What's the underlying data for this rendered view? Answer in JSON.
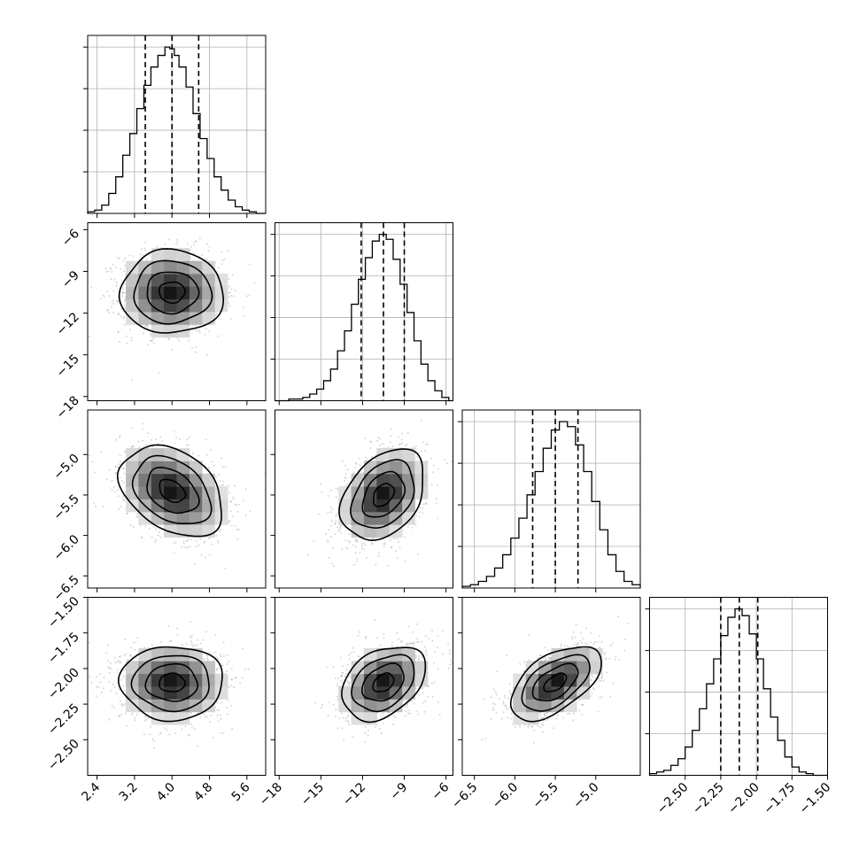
{
  "chart_data": {
    "type": "corner",
    "title": "",
    "parameters": [
      {
        "name": "",
        "lim": [
          2.2,
          6.0
        ],
        "ticks": [
          2.4,
          3.2,
          4.0,
          4.8,
          5.6
        ],
        "tick_labels": [
          "2.4",
          "3.2",
          "4.0",
          "4.8",
          "5.6"
        ],
        "quantiles": [
          3.43,
          4.0,
          4.57
        ],
        "hist_bins": [
          2.2,
          2.35,
          2.5,
          2.65,
          2.8,
          2.95,
          3.1,
          3.25,
          3.4,
          3.55,
          3.7,
          3.85,
          3.95,
          4.05,
          4.15,
          4.3,
          4.45,
          4.6,
          4.75,
          4.9,
          5.05,
          5.2,
          5.35,
          5.5,
          5.65,
          5.8,
          6.0
        ],
        "hist_counts": [
          1,
          2,
          5,
          12,
          22,
          35,
          48,
          63,
          77,
          88,
          95,
          100,
          99,
          95,
          88,
          76,
          60,
          45,
          33,
          22,
          14,
          8,
          4,
          2,
          1,
          0
        ]
      },
      {
        "name": "",
        "lim": [
          -18.3,
          -5.5
        ],
        "ticks": [
          -18,
          -15,
          -12,
          -9,
          -6
        ],
        "tick_labels": [
          "−18",
          "−15",
          "−12",
          "−9",
          "−6"
        ],
        "quantiles": [
          -12.1,
          -10.5,
          -9.0
        ],
        "hist_bins": [
          -18.3,
          -17.8,
          -17.3,
          -16.8,
          -16.3,
          -15.8,
          -15.3,
          -14.8,
          -14.3,
          -13.8,
          -13.3,
          -12.8,
          -12.3,
          -11.8,
          -11.3,
          -10.8,
          -10.3,
          -9.8,
          -9.3,
          -8.8,
          -8.3,
          -7.8,
          -7.3,
          -6.8,
          -6.3,
          -5.8,
          -5.5
        ],
        "hist_counts": [
          0,
          0,
          1,
          1,
          2,
          4,
          7,
          12,
          19,
          30,
          42,
          58,
          73,
          86,
          96,
          100,
          97,
          85,
          70,
          53,
          36,
          22,
          12,
          6,
          2,
          0
        ]
      },
      {
        "name": "",
        "lim": [
          -6.65,
          -4.45
        ],
        "ticks": [
          -6.5,
          -6.0,
          -5.5,
          -5.0
        ],
        "tick_labels": [
          "−6.5",
          "−6.0",
          "−5.5",
          "−5.0"
        ],
        "quantiles": [
          -5.78,
          -5.5,
          -5.22
        ],
        "hist_bins": [
          -6.65,
          -6.55,
          -6.45,
          -6.35,
          -6.25,
          -6.15,
          -6.05,
          -5.95,
          -5.85,
          -5.75,
          -5.65,
          -5.55,
          -5.45,
          -5.35,
          -5.25,
          -5.15,
          -5.05,
          -4.95,
          -4.85,
          -4.75,
          -4.65,
          -4.55,
          -4.45
        ],
        "hist_counts": [
          1,
          2,
          4,
          7,
          12,
          20,
          30,
          42,
          56,
          70,
          84,
          95,
          100,
          97,
          86,
          70,
          52,
          35,
          20,
          10,
          4,
          2
        ]
      },
      {
        "name": "",
        "lim": [
          -2.75,
          -1.5
        ],
        "ticks": [
          -2.5,
          -2.25,
          -2.0,
          -1.75,
          -1.5
        ],
        "tick_labels": [
          "−2.50",
          "−2.25",
          "−2.00",
          "−1.75",
          "−1.50"
        ],
        "quantiles": [
          -2.25,
          -2.12,
          -1.99
        ],
        "hist_bins": [
          -2.75,
          -2.7,
          -2.65,
          -2.6,
          -2.55,
          -2.5,
          -2.45,
          -2.4,
          -2.35,
          -2.3,
          -2.25,
          -2.2,
          -2.15,
          -2.1,
          -2.05,
          -2.0,
          -1.95,
          -1.9,
          -1.85,
          -1.8,
          -1.75,
          -1.7,
          -1.65,
          -1.6,
          -1.55,
          -1.5
        ],
        "hist_counts": [
          1,
          2,
          3,
          6,
          10,
          17,
          27,
          40,
          55,
          70,
          84,
          95,
          100,
          96,
          85,
          70,
          52,
          35,
          21,
          11,
          5,
          2,
          1,
          0,
          0
        ]
      }
    ],
    "pairs": [
      {
        "row": 1,
        "col": 0,
        "center": [
          4.0,
          -10.5
        ],
        "sigma": [
          0.55,
          1.5
        ],
        "rho": 0.0
      },
      {
        "row": 2,
        "col": 0,
        "center": [
          4.0,
          -5.45
        ],
        "sigma": [
          0.55,
          0.28
        ],
        "rho": -0.35
      },
      {
        "row": 2,
        "col": 1,
        "center": [
          -10.5,
          -5.5
        ],
        "sigma": [
          1.5,
          0.28
        ],
        "rho": 0.35
      },
      {
        "row": 3,
        "col": 0,
        "center": [
          4.0,
          -2.1
        ],
        "sigma": [
          0.55,
          0.13
        ],
        "rho": 0.0
      },
      {
        "row": 3,
        "col": 1,
        "center": [
          -10.5,
          -2.1
        ],
        "sigma": [
          1.5,
          0.13
        ],
        "rho": 0.35
      },
      {
        "row": 3,
        "col": 2,
        "center": [
          -5.5,
          -2.1
        ],
        "sigma": [
          0.28,
          0.13
        ],
        "rho": 0.55
      }
    ],
    "contour_levels_sigma": [
      0.5,
      1.0,
      1.5,
      2.0
    ],
    "grid": true,
    "colors": {
      "points": "#8c8c8c",
      "lines": "#000000",
      "grid": "#b0b0b0"
    }
  }
}
